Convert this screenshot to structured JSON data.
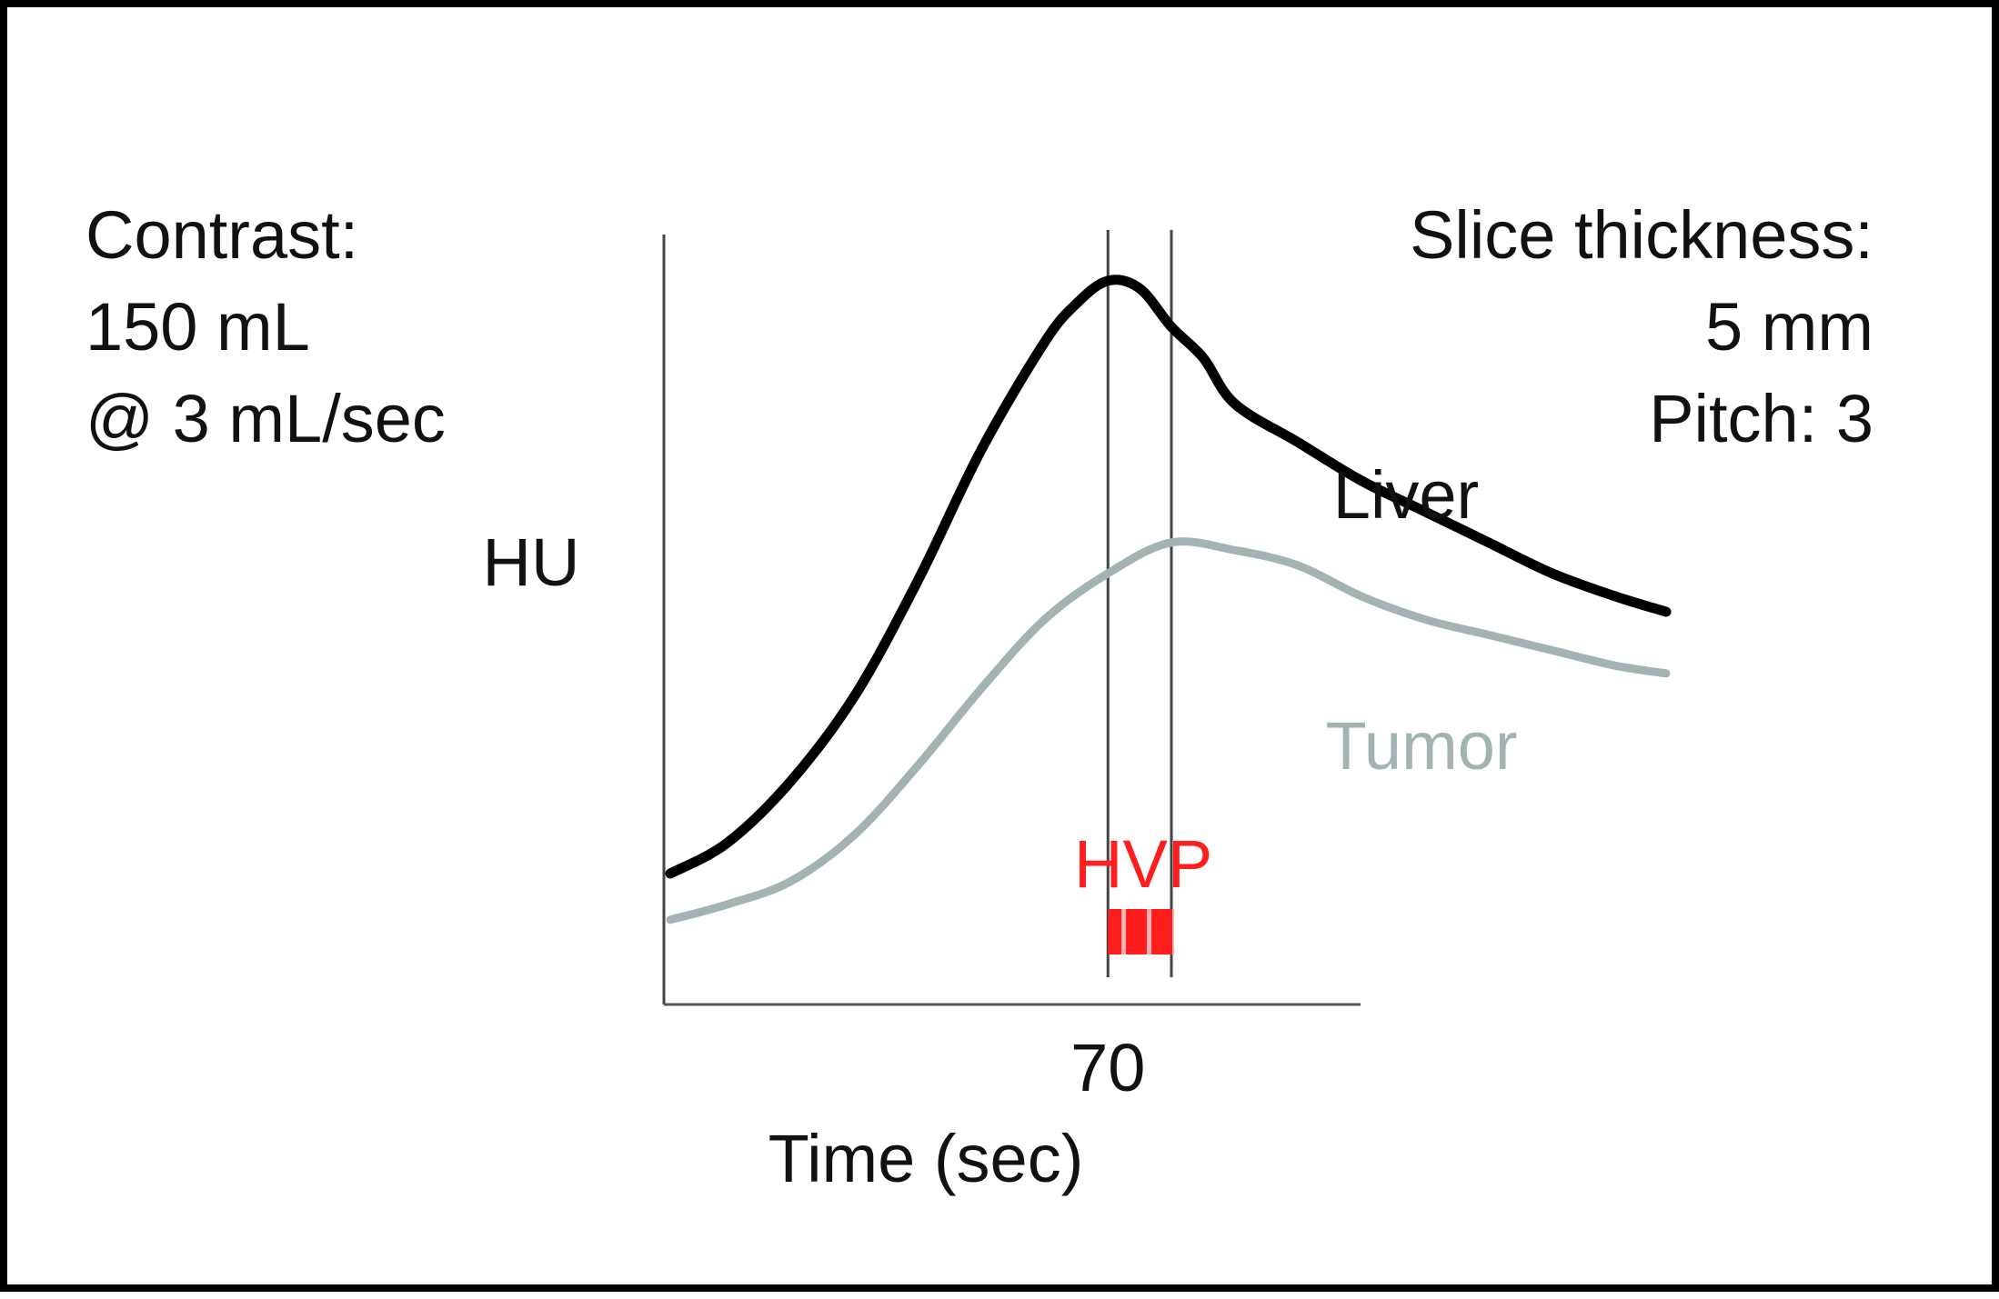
{
  "notes": {
    "contrast": [
      "Contrast:",
      "150 mL",
      "@ 3 mL/sec"
    ],
    "scan": [
      "Slice thickness:",
      "5 mm",
      "Pitch:  3"
    ]
  },
  "chart_data": {
    "type": "line",
    "title": "",
    "xlabel": "Time (sec)",
    "ylabel": "HU",
    "xtick_labels": [
      {
        "x": 70,
        "label": "70"
      }
    ],
    "xlim": [
      0,
      160
    ],
    "ylim": [
      0,
      100
    ],
    "grid": false,
    "reference_lines_x": [
      70,
      80
    ],
    "band": {
      "label": "HVP",
      "x_start": 70,
      "x_end": 80,
      "color": "#ff1e1e",
      "hatched": true
    },
    "series": [
      {
        "name": "Liver",
        "color": "#000000",
        "x": [
          1,
          10,
          20,
          30,
          40,
          50,
          60,
          65,
          70,
          75,
          80,
          85,
          90,
          100,
          110,
          120,
          130,
          140,
          150,
          158
        ],
        "y": [
          17,
          21,
          29,
          40,
          55,
          72,
          86,
          91,
          94,
          93,
          88,
          84,
          78,
          73,
          68,
          64,
          60,
          56,
          53,
          51
        ]
      },
      {
        "name": "Tumor",
        "color": "#a3b3b3",
        "x": [
          1,
          10,
          20,
          30,
          40,
          50,
          60,
          70,
          80,
          90,
          100,
          110,
          120,
          130,
          140,
          150,
          158
        ],
        "y": [
          11,
          13,
          16,
          22,
          31,
          41,
          50,
          56,
          60,
          59,
          57,
          53,
          50,
          48,
          46,
          44,
          43
        ]
      }
    ]
  }
}
